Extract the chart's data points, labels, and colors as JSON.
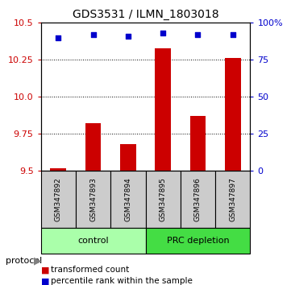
{
  "title": "GDS3531 / ILMN_1803018",
  "samples": [
    "GSM347892",
    "GSM347893",
    "GSM347894",
    "GSM347895",
    "GSM347896",
    "GSM347897"
  ],
  "red_values": [
    9.52,
    9.82,
    9.68,
    10.33,
    9.87,
    10.26
  ],
  "blue_values": [
    90,
    92,
    91,
    93,
    92,
    92
  ],
  "ylim_left": [
    9.5,
    10.5
  ],
  "yticks_left": [
    9.5,
    9.75,
    10.0,
    10.25,
    10.5
  ],
  "ylim_right": [
    0,
    100
  ],
  "yticks_right": [
    0,
    25,
    50,
    75,
    100
  ],
  "groups": [
    {
      "label": "control",
      "indices": [
        0,
        1,
        2
      ],
      "color": "#aaffaa"
    },
    {
      "label": "PRC depletion",
      "indices": [
        3,
        4,
        5
      ],
      "color": "#44dd44"
    }
  ],
  "bar_color": "#cc0000",
  "dot_color": "#0000cc",
  "legend_red": "transformed count",
  "legend_blue": "percentile rank within the sample",
  "protocol_label": "protocol",
  "background_color": "#ffffff",
  "sample_box_color": "#cccccc"
}
